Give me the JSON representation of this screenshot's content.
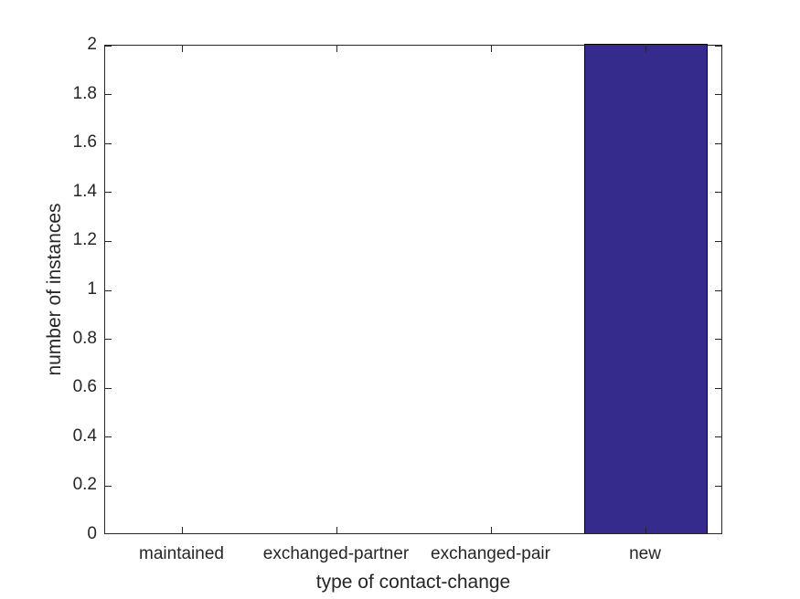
{
  "chart_data": {
    "type": "bar",
    "title": "",
    "categories": [
      "maintained",
      "exchanged-partner",
      "exchanged-pair",
      "new"
    ],
    "values": [
      0,
      0,
      0,
      2
    ],
    "xlabel": "type of contact-change",
    "ylabel": "number of instances",
    "ylim": [
      0,
      2
    ],
    "yticks": [
      0,
      0.2,
      0.4,
      0.6,
      0.8,
      1,
      1.2,
      1.4,
      1.6,
      1.8,
      2
    ],
    "ytick_labels": [
      "0",
      "0.2",
      "0.4",
      "0.6",
      "0.8",
      "1",
      "1.2",
      "1.4",
      "1.6",
      "1.8",
      "2"
    ],
    "grid": false,
    "legend": null,
    "bar_width_fraction": 0.8,
    "colors": {
      "bar_fill": "#352B8C",
      "bar_edge": "#000000",
      "axis": "#262626",
      "text": "#262626",
      "background": "#ffffff"
    }
  }
}
